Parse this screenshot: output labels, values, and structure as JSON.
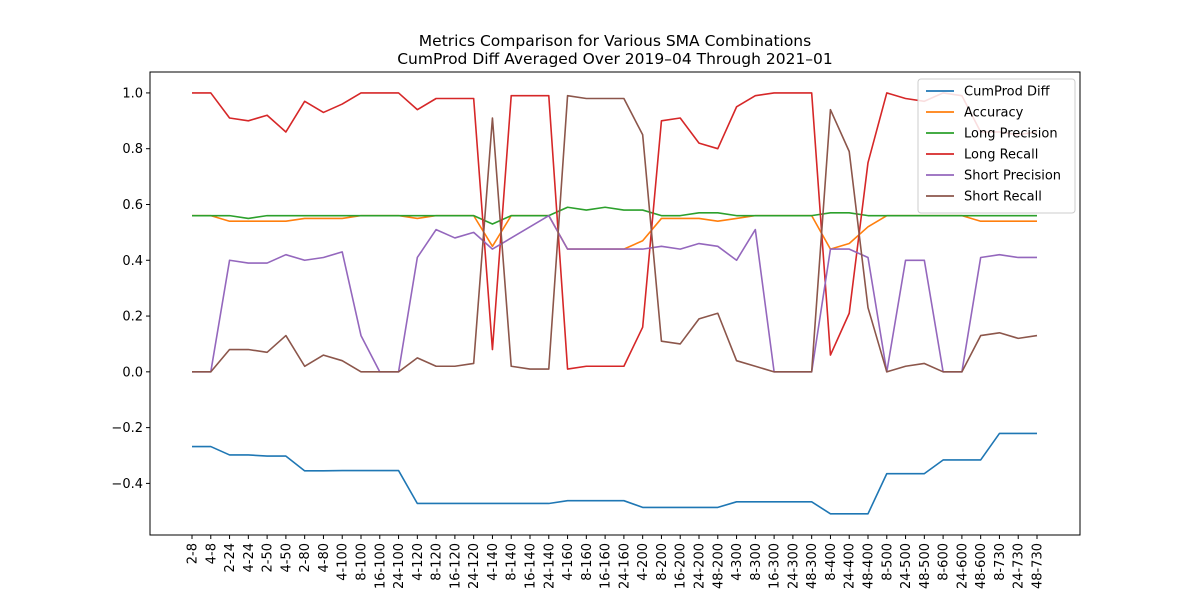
{
  "chart_data": {
    "type": "line",
    "title": "Metrics Comparison for Various SMA Combinations",
    "subtitle": "CumProd Diff Averaged Over 2019–04 Through 2021–01",
    "xlabel": "",
    "ylabel": "",
    "ylim": [
      -0.585,
      1.075
    ],
    "yticks": [
      -0.4,
      -0.2,
      0.0,
      0.2,
      0.4,
      0.6,
      0.8,
      1.0
    ],
    "grid": false,
    "legend_position": "upper-right",
    "categories": [
      "2-8",
      "4-8",
      "2-24",
      "4-24",
      "2-50",
      "4-50",
      "2-80",
      "4-80",
      "4-100",
      "8-100",
      "16-100",
      "24-100",
      "4-120",
      "8-120",
      "16-120",
      "24-120",
      "4-140",
      "8-140",
      "16-140",
      "24-140",
      "4-160",
      "8-160",
      "16-160",
      "24-160",
      "4-200",
      "8-200",
      "16-200",
      "24-200",
      "48-200",
      "4-300",
      "8-300",
      "16-300",
      "24-300",
      "48-300",
      "8-400",
      "24-400",
      "48-400",
      "8-500",
      "24-500",
      "48-500",
      "8-600",
      "24-600",
      "48-600",
      "8-730",
      "24-730",
      "48-730"
    ],
    "series": [
      {
        "name": "CumProd Diff",
        "color": "#1f77b4",
        "values": [
          -0.268,
          -0.268,
          -0.298,
          -0.298,
          -0.302,
          -0.302,
          -0.355,
          -0.355,
          -0.354,
          -0.354,
          -0.354,
          -0.354,
          -0.472,
          -0.472,
          -0.472,
          -0.472,
          -0.472,
          -0.472,
          -0.472,
          -0.472,
          -0.462,
          -0.462,
          -0.462,
          -0.462,
          -0.486,
          -0.486,
          -0.486,
          -0.486,
          -0.486,
          -0.466,
          -0.466,
          -0.466,
          -0.466,
          -0.466,
          -0.509,
          -0.509,
          -0.509,
          -0.365,
          -0.365,
          -0.365,
          -0.316,
          -0.316,
          -0.316,
          -0.221,
          -0.221,
          -0.221
        ]
      },
      {
        "name": "Accuracy",
        "color": "#ff7f0e",
        "values": [
          0.56,
          0.56,
          0.54,
          0.54,
          0.54,
          0.54,
          0.55,
          0.55,
          0.55,
          0.56,
          0.56,
          0.56,
          0.55,
          0.56,
          0.56,
          0.56,
          0.45,
          0.56,
          0.56,
          0.56,
          0.44,
          0.44,
          0.44,
          0.44,
          0.47,
          0.55,
          0.55,
          0.55,
          0.54,
          0.55,
          0.56,
          0.56,
          0.56,
          0.56,
          0.44,
          0.46,
          0.52,
          0.56,
          0.56,
          0.56,
          0.56,
          0.56,
          0.54,
          0.54,
          0.54,
          0.54
        ]
      },
      {
        "name": "Long Precision",
        "color": "#2ca02c",
        "values": [
          0.56,
          0.56,
          0.56,
          0.55,
          0.56,
          0.56,
          0.56,
          0.56,
          0.56,
          0.56,
          0.56,
          0.56,
          0.56,
          0.56,
          0.56,
          0.56,
          0.53,
          0.56,
          0.56,
          0.56,
          0.59,
          0.58,
          0.59,
          0.58,
          0.58,
          0.56,
          0.56,
          0.57,
          0.57,
          0.56,
          0.56,
          0.56,
          0.56,
          0.56,
          0.57,
          0.57,
          0.56,
          0.56,
          0.56,
          0.56,
          0.56,
          0.56,
          0.56,
          0.56,
          0.56,
          0.56
        ]
      },
      {
        "name": "Long Recall",
        "color": "#d62728",
        "values": [
          1.0,
          1.0,
          0.91,
          0.9,
          0.92,
          0.86,
          0.97,
          0.93,
          0.96,
          1.0,
          1.0,
          1.0,
          0.94,
          0.98,
          0.98,
          0.98,
          0.08,
          0.99,
          0.99,
          0.99,
          0.01,
          0.02,
          0.02,
          0.02,
          0.16,
          0.9,
          0.91,
          0.82,
          0.8,
          0.95,
          0.99,
          1.0,
          1.0,
          1.0,
          0.06,
          0.21,
          0.75,
          1.0,
          0.98,
          0.97,
          1.0,
          0.99,
          0.86,
          0.86,
          0.85,
          0.86
        ]
      },
      {
        "name": "Short Precision",
        "color": "#9467bd",
        "values": [
          0.0,
          0.0,
          0.4,
          0.39,
          0.39,
          0.42,
          0.4,
          0.41,
          0.43,
          0.13,
          0.0,
          0.0,
          0.41,
          0.51,
          0.48,
          0.5,
          0.44,
          0.48,
          0.52,
          0.56,
          0.44,
          0.44,
          0.44,
          0.44,
          0.44,
          0.45,
          0.44,
          0.46,
          0.45,
          0.4,
          0.51,
          0.0,
          0.0,
          0.0,
          0.44,
          0.44,
          0.41,
          0.0,
          0.4,
          0.4,
          0.0,
          0.0,
          0.41,
          0.42,
          0.41,
          0.41
        ]
      },
      {
        "name": "Short Recall",
        "color": "#8c564b",
        "values": [
          0.0,
          0.0,
          0.08,
          0.08,
          0.07,
          0.13,
          0.02,
          0.06,
          0.04,
          0.0,
          0.0,
          0.0,
          0.05,
          0.02,
          0.02,
          0.03,
          0.91,
          0.02,
          0.01,
          0.01,
          0.99,
          0.98,
          0.98,
          0.98,
          0.85,
          0.11,
          0.1,
          0.19,
          0.21,
          0.04,
          0.02,
          0.0,
          0.0,
          0.0,
          0.94,
          0.79,
          0.23,
          0.0,
          0.02,
          0.03,
          0.0,
          0.0,
          0.13,
          0.14,
          0.12,
          0.13
        ]
      }
    ]
  }
}
